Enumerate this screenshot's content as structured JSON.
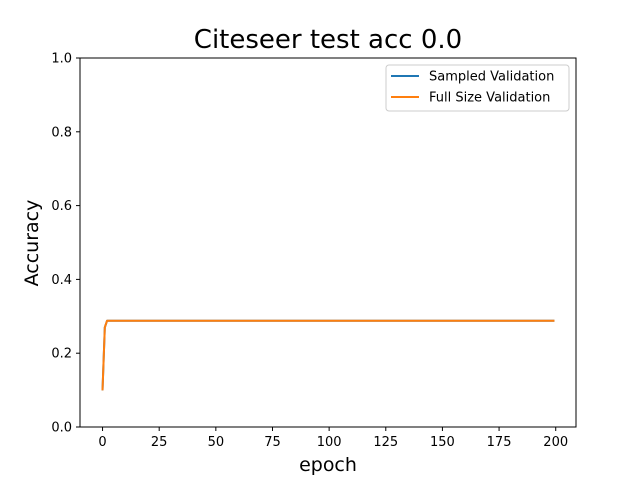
{
  "chart_data": {
    "type": "line",
    "title": "Citeseer test acc 0.0",
    "xlabel": "epoch",
    "ylabel": "Accuracy",
    "xlim": [
      -9.95,
      208.95
    ],
    "ylim": [
      0.0,
      1.0
    ],
    "xticks": [
      0,
      25,
      50,
      75,
      100,
      125,
      150,
      175,
      200
    ],
    "xtick_labels": [
      "0",
      "25",
      "50",
      "75",
      "100",
      "125",
      "150",
      "175",
      "200"
    ],
    "yticks": [
      0.0,
      0.2,
      0.4,
      0.6,
      0.8,
      1.0
    ],
    "ytick_labels": [
      "0.0",
      "0.2",
      "0.4",
      "0.6",
      "0.8",
      "1.0"
    ],
    "grid": false,
    "legend_position": "top-right",
    "series": [
      {
        "name": "Sampled Validation",
        "color": "#1f77b4",
        "points": [
          [
            0,
            0.102
          ],
          [
            1,
            0.27
          ],
          [
            2,
            0.288
          ],
          [
            199,
            0.288
          ]
        ]
      },
      {
        "name": "Full Size Validation",
        "color": "#ff7f0e",
        "points": [
          [
            0,
            0.102
          ],
          [
            1,
            0.27
          ],
          [
            2,
            0.288
          ],
          [
            199,
            0.288
          ]
        ]
      }
    ]
  }
}
